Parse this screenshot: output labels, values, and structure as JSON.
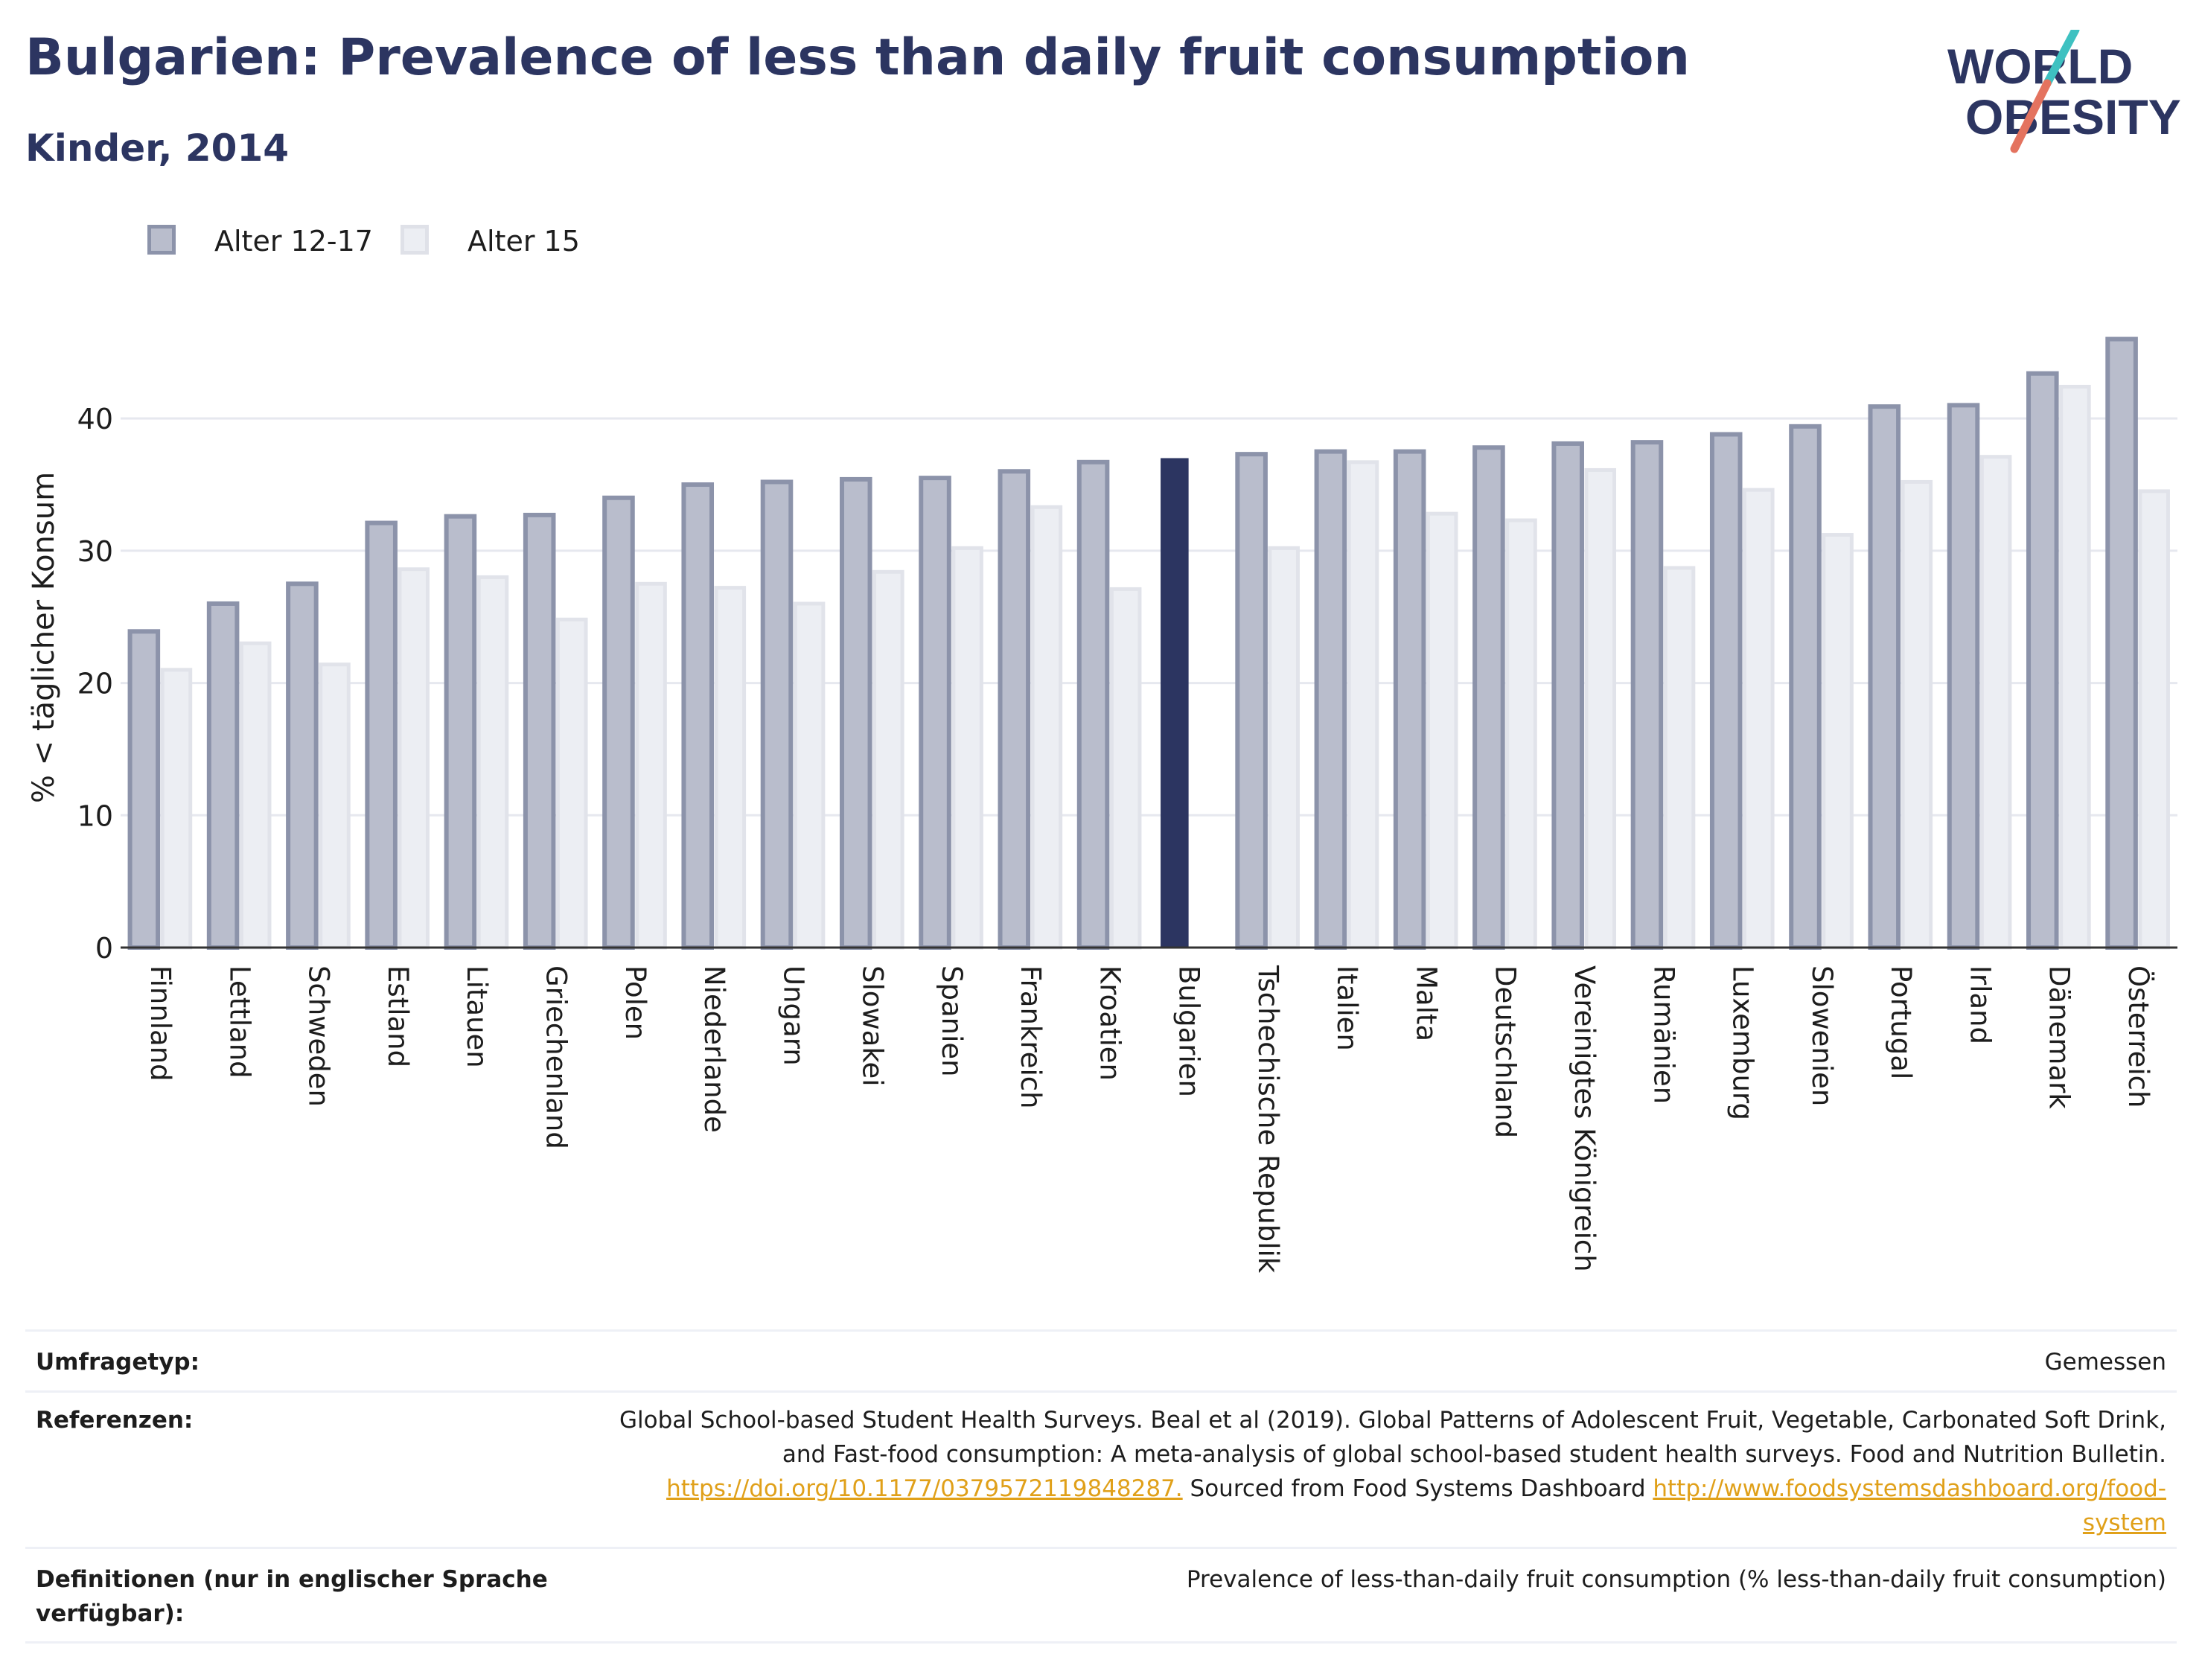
{
  "header": {
    "title": "Bulgarien: Prevalence of less than daily fruit consumption",
    "subtitle": "Kinder, 2014"
  },
  "logo": {
    "line1": "WORLD",
    "line2": "OBESITY",
    "colors": {
      "text": "#2c3561",
      "slash_teal": "#3ec1c1",
      "slash_coral": "#e4735f"
    }
  },
  "legend": {
    "items": [
      {
        "label": "Alter 12-17",
        "color": "#b9bdcc",
        "border": "#8c93aa"
      },
      {
        "label": "Alter 15",
        "color": "#eceef3",
        "border": "#dfe1e8"
      }
    ]
  },
  "chart_data": {
    "type": "bar",
    "ylabel": "% < täglicher Konsum",
    "ylim": [
      0,
      48
    ],
    "yticks": [
      0,
      10,
      20,
      30,
      40
    ],
    "grid": true,
    "highlight_category": "Bulgarien",
    "highlight_color": "#2c3561",
    "categories": [
      "Finnland",
      "Lettland",
      "Schweden",
      "Estland",
      "Litauen",
      "Griechenland",
      "Polen",
      "Niederlande",
      "Ungarn",
      "Slowakei",
      "Spanien",
      "Frankreich",
      "Kroatien",
      "Bulgarien",
      "Tschechische Republik",
      "Italien",
      "Malta",
      "Deutschland",
      "Vereinigtes Königreich",
      "Rumänien",
      "Luxemburg",
      "Slowenien",
      "Portugal",
      "Irland",
      "Dänemark",
      "Österreich"
    ],
    "series": [
      {
        "name": "Alter 12-17",
        "values": [
          23.9,
          26.0,
          27.5,
          32.1,
          32.6,
          32.7,
          34.0,
          35.0,
          35.2,
          35.4,
          35.5,
          36.0,
          36.7,
          37.0,
          37.3,
          37.5,
          37.5,
          37.8,
          38.1,
          38.2,
          38.8,
          39.4,
          40.9,
          41.0,
          43.4,
          46.0
        ]
      },
      {
        "name": "Alter 15",
        "values": [
          21.0,
          23.0,
          21.4,
          28.6,
          28.0,
          24.8,
          27.5,
          27.2,
          26.0,
          28.4,
          30.2,
          33.3,
          27.1,
          null,
          30.2,
          36.7,
          32.8,
          32.3,
          36.1,
          28.7,
          34.6,
          31.2,
          35.2,
          37.1,
          42.4,
          34.5
        ]
      }
    ]
  },
  "meta": {
    "survey_key": "Umfragetyp:",
    "survey_val": "Gemessen",
    "refs_key": "Referenzen:",
    "refs_line1": "Global School-based Student Health Surveys. Beal et al (2019). Global Patterns of Adolescent Fruit, Vegetable, Carbonated Soft Drink,",
    "refs_line2": "and Fast-food consumption: A meta-analysis of global school-based student health surveys. Food and Nutrition Bulletin.",
    "refs_link1": "https://doi.org/10.1177/0379572119848287.",
    "refs_mid": " Sourced from Food Systems Dashboard ",
    "refs_link2a": "http://www.foodsystemsdashboard.org/food-",
    "refs_link2b": "system",
    "defs_key": "Definitionen (nur in englischer Sprache verfügbar):",
    "defs_val": "Prevalence of less-than-daily fruit consumption (% less-than-daily fruit consumption)"
  }
}
